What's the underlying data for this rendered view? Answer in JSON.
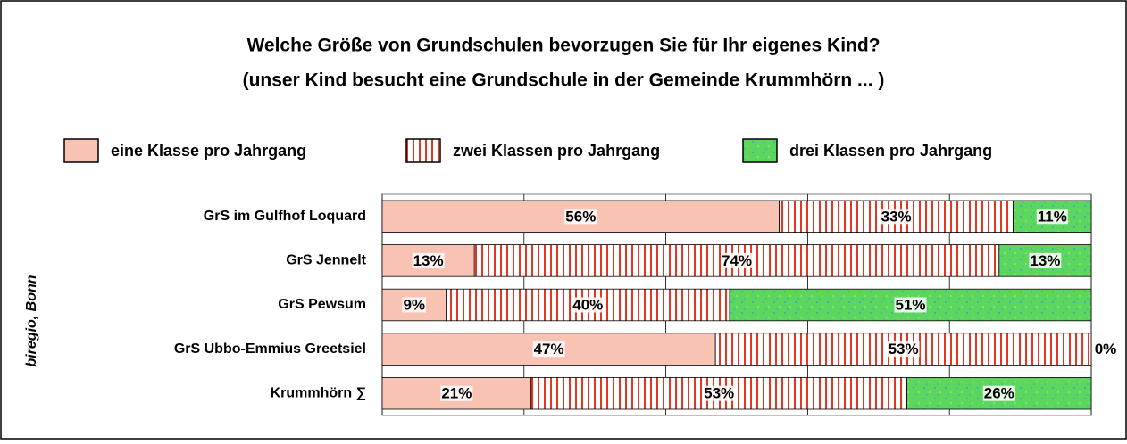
{
  "chart_data": {
    "type": "stacked_barh",
    "title": "Welche Größe von Grundschulen bevorzugen Sie für Ihr eigenes Kind?",
    "subtitle": "(unser Kind besucht eine Grundschule in der Gemeinde Krummhörn ... )",
    "source": "biregio, Bonn",
    "categories": [
      "GrS im Gulfhof Loquard",
      "GrS Jennelt",
      "GrS Pewsum",
      "GrS Ubbo-Emmius Greetsiel",
      "Krummhörn ∑"
    ],
    "series": [
      {
        "name": "eine Klasse pro Jahrgang",
        "color": "#f9c3b3",
        "values": [
          56,
          13,
          9,
          47,
          21
        ],
        "value_labels": [
          "56%",
          "13%",
          "9%",
          "47%",
          "21%"
        ]
      },
      {
        "name": "zwei Klassen pro Jahrgang",
        "color": "#e8351f",
        "values": [
          33,
          74,
          40,
          53,
          53
        ],
        "value_labels": [
          "33%",
          "74%",
          "40%",
          "53%",
          "53%"
        ]
      },
      {
        "name": "drei Klassen pro Jahrgang",
        "color": "#5cd65c",
        "values": [
          11,
          13,
          51,
          0,
          26
        ],
        "value_labels": [
          "11%",
          "13%",
          "51%",
          "0%",
          "26%"
        ]
      }
    ],
    "xlim": [
      0,
      100
    ],
    "xticks": [
      0,
      20,
      40,
      60,
      80,
      100
    ],
    "grid": true,
    "legend": "top"
  }
}
